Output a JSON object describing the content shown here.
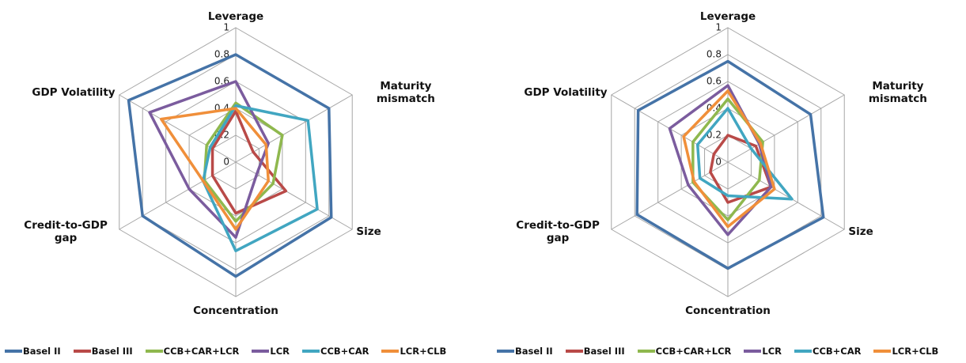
{
  "chart_data": [
    {
      "type": "radar",
      "categories": [
        "Leverage",
        "Maturity mismatch",
        "Size",
        "Concentration",
        "Credit-to-GDP gap",
        "GDP Volatility"
      ],
      "rlim": [
        0,
        1
      ],
      "rticks": [
        0,
        0.2,
        0.4,
        0.6,
        0.8,
        1
      ],
      "grid": true,
      "series": [
        {
          "name": "Basel II",
          "color": "#4573a7",
          "values": [
            0.8,
            0.8,
            0.82,
            0.85,
            0.8,
            0.92
          ]
        },
        {
          "name": "Basel III",
          "color": "#b94a48",
          "values": [
            0.38,
            0.15,
            0.43,
            0.38,
            0.2,
            0.2
          ]
        },
        {
          "name": "CCB+CAR+LCR",
          "color": "#8fb84e",
          "values": [
            0.44,
            0.4,
            0.32,
            0.44,
            0.27,
            0.25
          ]
        },
        {
          "name": "LCR",
          "color": "#7b5c9e",
          "values": [
            0.6,
            0.28,
            0.18,
            0.56,
            0.4,
            0.74
          ]
        },
        {
          "name": "CCB+CAR",
          "color": "#41a6c1",
          "values": [
            0.42,
            0.62,
            0.7,
            0.66,
            0.28,
            0.22
          ]
        },
        {
          "name": "LCR+CLB",
          "color": "#f08f3a",
          "values": [
            0.4,
            0.26,
            0.28,
            0.5,
            0.28,
            0.64
          ]
        }
      ]
    },
    {
      "type": "radar",
      "categories": [
        "Leverage",
        "Maturity mismatch",
        "Size",
        "Concentration",
        "Credit-to-GDP gap",
        "GDP Volatility"
      ],
      "rlim": [
        0,
        1
      ],
      "rticks": [
        0,
        0.2,
        0.4,
        0.6,
        0.8,
        1
      ],
      "grid": true,
      "series": [
        {
          "name": "Basel II",
          "color": "#4573a7",
          "values": [
            0.75,
            0.71,
            0.82,
            0.79,
            0.78,
            0.77
          ]
        },
        {
          "name": "Basel III",
          "color": "#b94a48",
          "values": [
            0.2,
            0.24,
            0.37,
            0.3,
            0.15,
            0.12
          ]
        },
        {
          "name": "CCB+CAR+LCR",
          "color": "#8fb84e",
          "values": [
            0.47,
            0.3,
            0.27,
            0.43,
            0.3,
            0.3
          ]
        },
        {
          "name": "LCR",
          "color": "#7b5c9e",
          "values": [
            0.57,
            0.27,
            0.37,
            0.54,
            0.34,
            0.5
          ]
        },
        {
          "name": "CCB+CAR",
          "color": "#41a6c1",
          "values": [
            0.4,
            0.2,
            0.55,
            0.25,
            0.24,
            0.26
          ]
        },
        {
          "name": "LCR+CLB",
          "color": "#f08f3a",
          "values": [
            0.53,
            0.28,
            0.4,
            0.48,
            0.29,
            0.38
          ]
        }
      ]
    }
  ]
}
